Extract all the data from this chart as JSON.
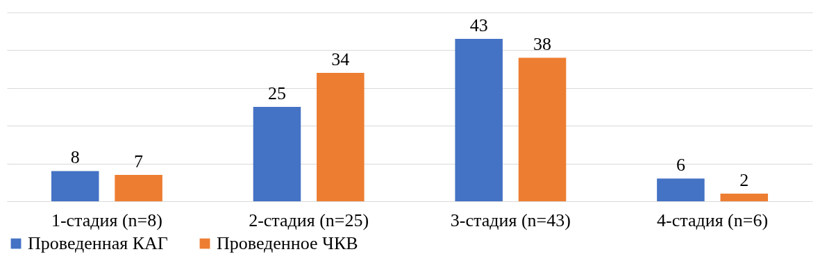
{
  "chart_data": {
    "type": "bar",
    "categories": [
      "1-стадия (n=8)",
      "2-стадия (n=25)",
      "3-стадия (n=43)",
      "4-стадия (n=6)"
    ],
    "series": [
      {
        "name": "Проведенная КАГ",
        "color": "#4472c4",
        "values": [
          8,
          25,
          43,
          6
        ]
      },
      {
        "name": "Проведенное ЧКВ",
        "color": "#ed7d31",
        "values": [
          7,
          34,
          38,
          2
        ]
      }
    ],
    "ylim": [
      0,
      50
    ],
    "yticks": [
      {
        "value": 0,
        "label": null
      },
      {
        "value": 10,
        "label": null
      },
      {
        "value": 20,
        "label": null
      },
      {
        "value": 30,
        "label": null
      },
      {
        "value": 40,
        "label": null
      },
      {
        "value": 50,
        "label": null
      }
    ],
    "tick_labels": "x",
    "grid": "y",
    "legend": "bottom",
    "data_labels": true
  }
}
